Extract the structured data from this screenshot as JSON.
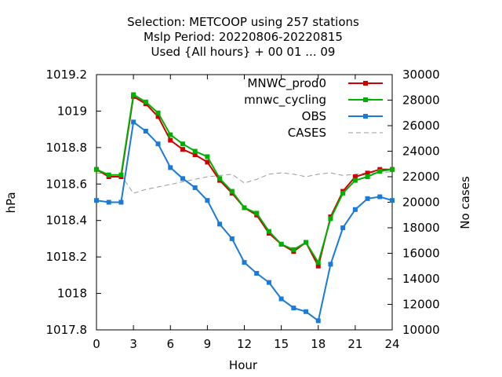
{
  "chart_data": {
    "type": "line",
    "title_lines": [
      "Selection: METCOOP using   257 stations",
      "Mslp   Period: 20220806-20220815",
      "Used {All hours} + 00 01 ... 09"
    ],
    "xlabel": "Hour",
    "ylabel": "hPa",
    "y2label": "No cases",
    "xlim": [
      0,
      24
    ],
    "ylim": [
      1017.8,
      1019.2
    ],
    "y2lim": [
      10000,
      30000
    ],
    "xticks": [
      0,
      3,
      6,
      9,
      12,
      15,
      18,
      21,
      24
    ],
    "yticks": [
      1017.8,
      1018,
      1018.2,
      1018.4,
      1018.6,
      1018.8,
      1019,
      1019.2
    ],
    "ytick_labels": [
      "1017.8",
      "1018",
      "1018.2",
      "1018.4",
      "1018.6",
      "1018.8",
      "1019",
      "1019.2"
    ],
    "y2ticks": [
      10000,
      12000,
      14000,
      16000,
      18000,
      20000,
      22000,
      24000,
      26000,
      28000,
      30000
    ],
    "y2tick_labels": [
      "10000",
      "12000",
      "14000",
      "16000",
      "18000",
      "20000",
      "22000",
      "24000",
      "26000",
      "28000",
      "30000"
    ],
    "legend_position": "top-right",
    "grid": false,
    "x": [
      0,
      1,
      2,
      3,
      4,
      5,
      6,
      7,
      8,
      9,
      10,
      11,
      12,
      13,
      14,
      15,
      16,
      17,
      18,
      19,
      20,
      21,
      22,
      23,
      24
    ],
    "series": [
      {
        "name": "MNWC_prod0",
        "axis": "left",
        "color": "#d00000",
        "marker": "square",
        "values": [
          1018.68,
          1018.64,
          1018.64,
          1019.08,
          1019.04,
          1018.97,
          1018.84,
          1018.79,
          1018.76,
          1018.72,
          1018.62,
          1018.55,
          1018.47,
          1018.43,
          1018.33,
          1018.27,
          1018.23,
          1018.28,
          1018.15,
          1018.42,
          1018.56,
          1018.64,
          1018.66,
          1018.68,
          1018.68
        ]
      },
      {
        "name": "mnwc_cycling",
        "axis": "left",
        "color": "#00b000",
        "marker": "square",
        "values": [
          1018.68,
          1018.65,
          1018.65,
          1019.09,
          1019.05,
          1018.99,
          1018.87,
          1018.82,
          1018.78,
          1018.75,
          1018.63,
          1018.56,
          1018.47,
          1018.44,
          1018.34,
          1018.27,
          1018.24,
          1018.28,
          1018.17,
          1018.41,
          1018.55,
          1018.62,
          1018.64,
          1018.67,
          1018.68
        ]
      },
      {
        "name": "OBS",
        "axis": "left",
        "color": "#1a7ad8",
        "marker": "square",
        "values": [
          1018.51,
          1018.5,
          1018.5,
          1018.94,
          1018.89,
          1018.82,
          1018.69,
          1018.63,
          1018.58,
          1018.51,
          1018.38,
          1018.3,
          1018.17,
          1018.11,
          1018.06,
          1017.97,
          1017.92,
          1017.9,
          1017.85,
          1018.16,
          1018.36,
          1018.46,
          1018.52,
          1018.53,
          1018.51
        ]
      },
      {
        "name": "CASES",
        "axis": "right",
        "color": "#999999",
        "dash": true,
        "values": [
          22300,
          22200,
          22100,
          20700,
          21000,
          21200,
          21400,
          21600,
          21800,
          22000,
          22100,
          22200,
          21500,
          21800,
          22200,
          22300,
          22200,
          22000,
          22200,
          22300,
          22100,
          22200,
          22300,
          22300,
          22400
        ]
      }
    ]
  }
}
